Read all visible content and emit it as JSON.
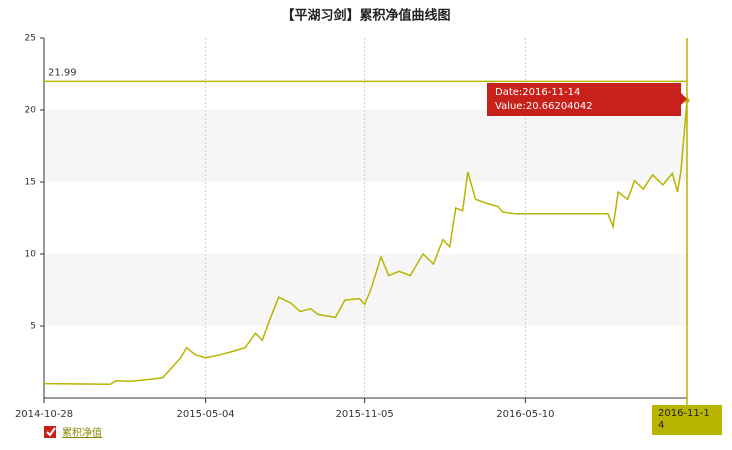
{
  "chart_data": {
    "type": "line",
    "title": "【平湖习剑】累积净值曲线图",
    "x": [
      "2014-10-28",
      "2015-01-13",
      "2015-01-20",
      "2015-02-06",
      "2015-03-01",
      "2015-03-15",
      "2015-03-24",
      "2015-04-05",
      "2015-04-12",
      "2015-04-22",
      "2015-05-04",
      "2015-05-21",
      "2015-06-08",
      "2015-06-19",
      "2015-07-01",
      "2015-07-09",
      "2015-07-18",
      "2015-07-28",
      "2015-08-11",
      "2015-08-22",
      "2015-09-03",
      "2015-09-12",
      "2015-10-02",
      "2015-10-13",
      "2015-10-30",
      "2015-11-05",
      "2015-11-12",
      "2015-11-24",
      "2015-12-03",
      "2015-12-15",
      "2015-12-28",
      "2016-01-12",
      "2016-01-24",
      "2016-02-04",
      "2016-02-12",
      "2016-02-19",
      "2016-02-27",
      "2016-03-04",
      "2016-03-13",
      "2016-03-27",
      "2016-04-08",
      "2016-04-14",
      "2016-04-28",
      "2016-08-14",
      "2016-08-20",
      "2016-08-26",
      "2016-09-06",
      "2016-09-14",
      "2016-09-24",
      "2016-10-05",
      "2016-10-17",
      "2016-10-28",
      "2016-11-03",
      "2016-11-07",
      "2016-11-14"
    ],
    "series": [
      {
        "name": "累积净值",
        "color": "#b8b400",
        "values": [
          1.0,
          0.95,
          1.2,
          1.15,
          1.3,
          1.4,
          2.0,
          2.8,
          3.5,
          3.0,
          2.8,
          3.0,
          3.3,
          3.5,
          4.5,
          4.0,
          5.5,
          7.0,
          6.6,
          6.0,
          6.2,
          5.8,
          5.6,
          6.8,
          6.9,
          6.5,
          7.5,
          9.8,
          8.5,
          8.8,
          8.5,
          10.0,
          9.3,
          11.0,
          10.5,
          13.2,
          13.0,
          15.7,
          13.8,
          13.5,
          13.3,
          12.9,
          12.8,
          12.8,
          11.9,
          14.3,
          13.8,
          15.1,
          14.5,
          15.5,
          14.8,
          15.6,
          14.3,
          15.8,
          20.66204042
        ]
      }
    ],
    "xlim": [
      "2014-10-28",
      "2016-11-14"
    ],
    "xticks": [
      "2014-10-28",
      "2015-05-04",
      "2015-11-05",
      "2016-05-10",
      "2016-11-14"
    ],
    "ylim": [
      0,
      25
    ],
    "yticks": [
      5,
      10,
      15,
      20,
      25
    ],
    "reference_line": {
      "value": 21.99,
      "label": "21.99"
    },
    "tooltip": {
      "x": "2016-11-14",
      "value": 20.66204042,
      "lines": [
        "Date:2016-11-14",
        "Value:20.66204042"
      ]
    },
    "crosshair_label": "2016-11-14",
    "grid": true
  }
}
